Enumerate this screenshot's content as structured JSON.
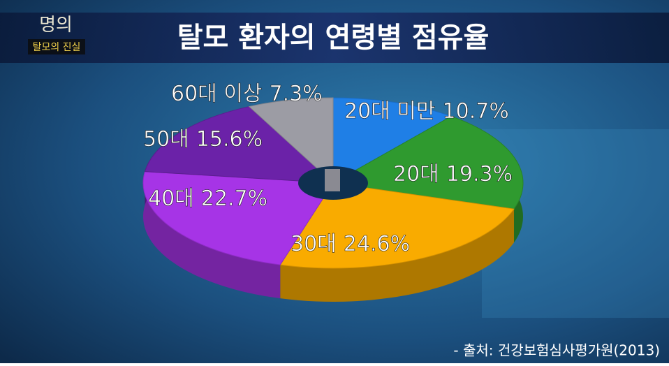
{
  "logo": {
    "title": "명의",
    "subtitle": "탈모의 진실"
  },
  "chart_data": {
    "type": "pie",
    "donut": true,
    "title": "탈모 환자의 연령별 점유율",
    "categories": [
      "20대 미만",
      "20대",
      "30대",
      "40대",
      "50대",
      "60대 이상"
    ],
    "values": [
      10.7,
      19.3,
      24.6,
      22.7,
      15.6,
      7.3
    ],
    "value_labels": [
      "10.7%",
      "19.3%",
      "24.6%",
      "22.7%",
      "15.6%",
      "7.3%"
    ],
    "colors": [
      "#1f7fe6",
      "#2f9a2f",
      "#f9ab00",
      "#a634e6",
      "#6b22a8",
      "#9c9ca4"
    ],
    "source": "- 출처: 건강보험심사평가원(2013)"
  }
}
